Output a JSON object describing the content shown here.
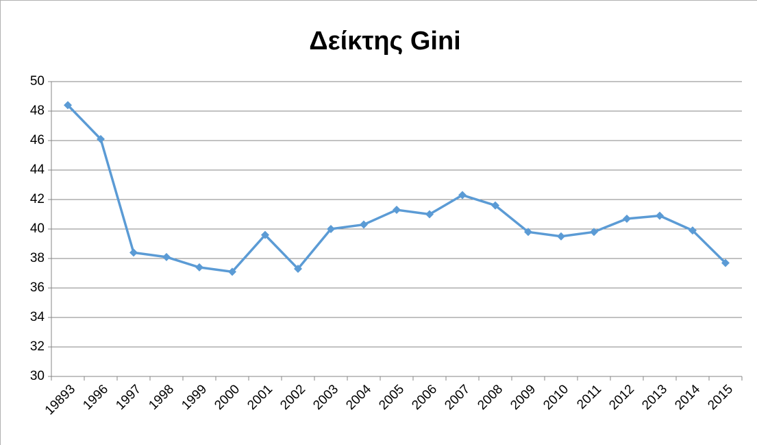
{
  "chart_data": {
    "type": "line",
    "title": "Δείκτης Gini",
    "categories": [
      "19893",
      "1996",
      "1997",
      "1998",
      "1999",
      "2000",
      "2001",
      "2002",
      "2003",
      "2004",
      "2005",
      "2006",
      "2007",
      "2008",
      "2009",
      "2010",
      "2011",
      "2012",
      "2013",
      "2014",
      "2015"
    ],
    "series": [
      {
        "name": "Gini",
        "color": "#5b9bd5",
        "values": [
          48.4,
          46.1,
          38.4,
          38.1,
          37.4,
          37.1,
          39.6,
          37.3,
          40.0,
          40.3,
          41.3,
          41.0,
          42.3,
          41.6,
          39.8,
          39.5,
          39.8,
          40.7,
          40.9,
          39.9,
          37.7
        ]
      }
    ],
    "ylim": [
      30,
      50
    ],
    "yticks": [
      30,
      32,
      34,
      36,
      38,
      40,
      42,
      44,
      46,
      48,
      50
    ],
    "grid": true
  }
}
